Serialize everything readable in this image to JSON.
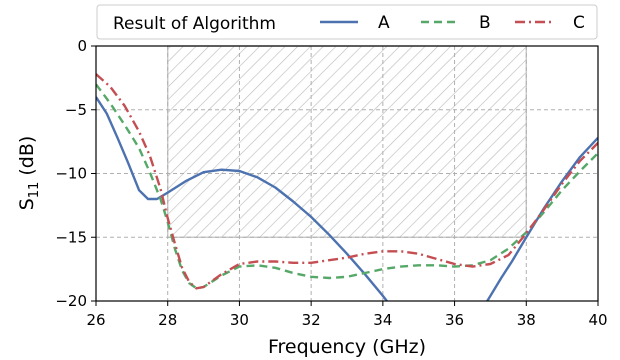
{
  "chart_data": {
    "type": "line",
    "xlabel": "Frequency (GHz)",
    "ylabel_main": "S",
    "ylabel_sub": "11",
    "ylabel_unit": " (dB)",
    "xlim": [
      26,
      40
    ],
    "ylim": [
      -20,
      0
    ],
    "xticks": [
      26,
      28,
      30,
      32,
      34,
      36,
      38,
      40
    ],
    "yticks": [
      0,
      -5,
      -10,
      -15,
      -20
    ],
    "xtick_labels": [
      "26",
      "28",
      "30",
      "32",
      "34",
      "36",
      "38",
      "40"
    ],
    "ytick_labels": [
      "0",
      "−5",
      "−10",
      "−15",
      "−20"
    ],
    "grid": true,
    "legend_title": "Result of Algorithm",
    "legend_position": "top",
    "shaded_region": {
      "x": [
        28,
        38
      ],
      "y": [
        -15,
        0
      ],
      "pattern": "hatch"
    },
    "series": [
      {
        "name": "A",
        "color": "#4c72b0",
        "dash": "solid",
        "x": [
          26.0,
          26.3,
          26.6,
          26.9,
          27.2,
          27.45,
          27.7,
          28.0,
          28.5,
          29.0,
          29.5,
          30.0,
          30.5,
          31.0,
          31.5,
          32.0,
          32.5,
          33.0,
          33.5,
          34.0,
          34.25,
          36.8,
          37.0,
          37.3,
          37.6,
          38.0,
          38.5,
          39.0,
          39.5,
          40.0
        ],
        "y": [
          -4.0,
          -5.3,
          -7.2,
          -9.2,
          -11.3,
          -12.0,
          -12.0,
          -11.5,
          -10.6,
          -9.9,
          -9.7,
          -9.8,
          -10.3,
          -11.1,
          -12.2,
          -13.4,
          -14.8,
          -16.3,
          -17.9,
          -19.6,
          -20.5,
          -20.5,
          -19.6,
          -18.2,
          -16.9,
          -15.0,
          -12.7,
          -10.6,
          -8.7,
          -7.2
        ]
      },
      {
        "name": "B",
        "color": "#55a868",
        "dash": "8,5",
        "x": [
          26.0,
          26.4,
          26.8,
          27.2,
          27.5,
          27.8,
          28.0,
          28.2,
          28.4,
          28.6,
          28.8,
          29.0,
          29.5,
          30.0,
          30.5,
          31.0,
          31.5,
          32.0,
          32.5,
          33.0,
          33.5,
          34.0,
          34.5,
          35.0,
          35.5,
          36.0,
          36.5,
          37.0,
          37.5,
          38.0,
          38.5,
          39.0,
          39.5,
          40.0
        ],
        "y": [
          -3.0,
          -4.5,
          -6.2,
          -8.0,
          -9.9,
          -12.0,
          -13.8,
          -15.9,
          -17.6,
          -18.6,
          -19.0,
          -18.9,
          -18.0,
          -17.3,
          -17.2,
          -17.4,
          -17.8,
          -18.1,
          -18.2,
          -18.1,
          -17.8,
          -17.5,
          -17.3,
          -17.2,
          -17.2,
          -17.3,
          -17.2,
          -16.8,
          -15.9,
          -14.6,
          -13.0,
          -11.3,
          -9.8,
          -8.4
        ]
      },
      {
        "name": "C",
        "color": "#c44e52",
        "dash": "10,4,2,4",
        "x": [
          26.0,
          26.4,
          26.8,
          27.2,
          27.5,
          27.8,
          28.0,
          28.2,
          28.4,
          28.6,
          28.8,
          29.0,
          29.5,
          30.0,
          30.5,
          31.0,
          31.5,
          32.0,
          32.5,
          33.0,
          33.5,
          34.0,
          34.5,
          35.0,
          35.5,
          36.0,
          36.5,
          37.0,
          37.5,
          38.0,
          38.5,
          39.0,
          39.5,
          40.0
        ],
        "y": [
          -2.2,
          -3.2,
          -4.7,
          -6.7,
          -8.6,
          -11.2,
          -13.5,
          -15.5,
          -17.4,
          -18.5,
          -19.0,
          -18.9,
          -17.9,
          -17.1,
          -16.9,
          -16.9,
          -17.0,
          -17.0,
          -16.8,
          -16.6,
          -16.3,
          -16.1,
          -16.1,
          -16.3,
          -16.7,
          -17.1,
          -17.3,
          -17.1,
          -16.4,
          -14.7,
          -12.8,
          -10.8,
          -9.0,
          -7.6
        ]
      }
    ]
  }
}
